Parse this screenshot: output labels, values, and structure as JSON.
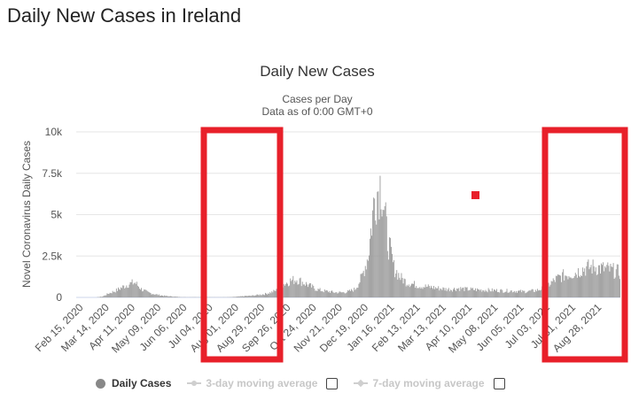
{
  "page_title": "Daily New Cases in Ireland",
  "chart_data": {
    "type": "bar",
    "title": "Daily New Cases",
    "subtitle_lines": [
      "Cases per Day",
      "Data as of 0:00 GMT+0"
    ],
    "ylabel": "Novel Coronavirus Daily Cases",
    "xlabel": "",
    "ylim": [
      0,
      10000
    ],
    "yticks": [
      {
        "value": 0,
        "label": "0"
      },
      {
        "value": 2500,
        "label": "2.5k"
      },
      {
        "value": 5000,
        "label": "5k"
      },
      {
        "value": 7500,
        "label": "7.5k"
      },
      {
        "value": 10000,
        "label": "10k"
      }
    ],
    "x_tick_labels": [
      "Feb 15, 2020",
      "Mar 14, 2020",
      "Apr 11, 2020",
      "May 09, 2020",
      "Jun 06, 2020",
      "Jul 04, 2020",
      "Aug 01, 2020",
      "Aug 29, 2020",
      "Sep 26, 2020",
      "Oct 24, 2020",
      "Nov 21, 2020",
      "Dec 19, 2020",
      "Jan 16, 2021",
      "Feb 13, 2021",
      "Mar 13, 2021",
      "Apr 10, 2021",
      "May 08, 2021",
      "Jun 05, 2021",
      "Jul 03, 2021",
      "Jul 31, 2021",
      "Aug 28, 2021"
    ],
    "grid": true,
    "legend_position": "bottom",
    "series": [
      {
        "name": "Daily Cases",
        "color": "#999999",
        "x_start": "2020-02-15",
        "x_end": "2021-09-24",
        "weekly_average": [
          0,
          0,
          0,
          0,
          50,
          250,
          400,
          600,
          800,
          900,
          500,
          300,
          200,
          120,
          80,
          50,
          20,
          10,
          15,
          10,
          10,
          10,
          10,
          10,
          20,
          50,
          80,
          100,
          150,
          200,
          300,
          450,
          800,
          1000,
          1100,
          900,
          700,
          500,
          400,
          350,
          300,
          300,
          350,
          500,
          1200,
          2500,
          6000,
          7000,
          3500,
          1800,
          1200,
          900,
          800,
          700,
          650,
          600,
          550,
          500,
          500,
          550,
          500,
          480,
          460,
          450,
          430,
          420,
          400,
          400,
          380,
          350,
          380,
          420,
          550,
          800,
          1100,
          1300,
          1400,
          1500,
          1700,
          1800,
          1850,
          1750,
          1700,
          1600,
          1500
        ]
      },
      {
        "name": "3-day moving average",
        "visible": false
      },
      {
        "name": "7-day moving average",
        "visible": false
      }
    ]
  },
  "annotations": {
    "highlight_color": "#e8202a",
    "boxes": [
      "aug-sep-2020",
      "jul-aug-2021"
    ],
    "marker": "red-square"
  }
}
